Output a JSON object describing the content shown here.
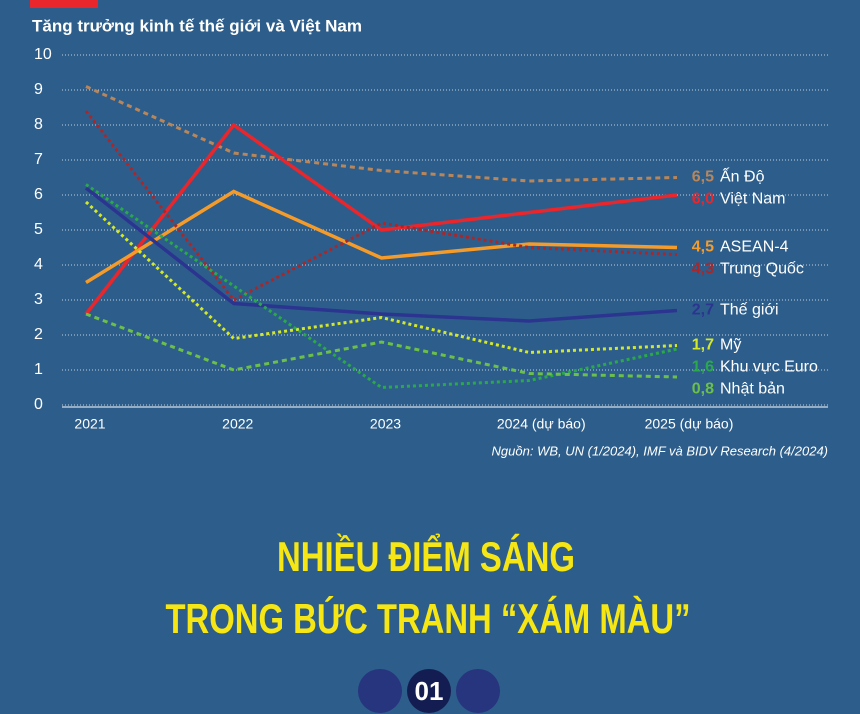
{
  "chart_data": {
    "type": "line",
    "title": "Tăng trưởng kinh tế thế giới và Việt Nam",
    "categories": [
      "2021",
      "2022",
      "2023",
      "2024  (dự báo)",
      "2025 (dự báo)"
    ],
    "ylim": [
      0,
      10
    ],
    "yticks": [
      0,
      1,
      2,
      3,
      4,
      5,
      6,
      7,
      8,
      9,
      10
    ],
    "grid": true,
    "series": [
      {
        "name": "Ấn Độ",
        "color": "#b8865a",
        "style": "dashed",
        "values": [
          9.1,
          7.2,
          6.7,
          6.4,
          6.5
        ],
        "value_labels": [
          null,
          null,
          null,
          null,
          "6,5"
        ]
      },
      {
        "name": "Việt Nam",
        "color": "#e8262c",
        "style": "solid",
        "values": [
          2.6,
          8.0,
          5.0,
          5.5,
          6.0
        ],
        "value_labels": [
          null,
          null,
          null,
          null,
          "6,0"
        ]
      },
      {
        "name": "ASEAN-4",
        "color": "#f59b2a",
        "style": "solid",
        "values": [
          3.5,
          6.1,
          4.2,
          4.6,
          4.5
        ],
        "value_labels": [
          null,
          null,
          null,
          null,
          "4,5"
        ]
      },
      {
        "name": "Trung Quốc",
        "color": "#a8272b",
        "style": "dotted",
        "values": [
          8.4,
          3.0,
          5.2,
          4.5,
          4.3
        ],
        "value_labels": [
          null,
          null,
          null,
          null,
          "4,3"
        ]
      },
      {
        "name": "Thế giới",
        "color": "#2b3590",
        "style": "solid",
        "values": [
          6.2,
          2.9,
          2.6,
          2.4,
          2.7
        ],
        "value_labels": [
          null,
          null,
          null,
          null,
          "2,7"
        ]
      },
      {
        "name": "Mỹ",
        "color": "#d4e82a",
        "style": "dotted",
        "values": [
          5.8,
          1.9,
          2.5,
          1.5,
          1.7
        ],
        "value_labels": [
          null,
          null,
          null,
          null,
          "1,7"
        ]
      },
      {
        "name": "Khu vực Euro",
        "color": "#2aa84a",
        "style": "dotted",
        "values": [
          6.3,
          3.4,
          0.5,
          0.7,
          1.6
        ],
        "value_labels": [
          null,
          null,
          null,
          null,
          "1,6"
        ]
      },
      {
        "name": "Nhật bản",
        "color": "#6cc04a",
        "style": "dashed",
        "values": [
          2.6,
          1.0,
          1.8,
          0.9,
          0.8
        ],
        "value_labels": [
          null,
          null,
          null,
          null,
          "0,8"
        ]
      }
    ],
    "source": "Nguồn: WB, UN (1/2024), IMF và BIDV Research (4/2024)"
  },
  "headline": [
    "NHIỀU ĐIỂM SÁNG",
    "TRONG BỨC TRANH “XÁM MÀU”"
  ],
  "badge": "01"
}
